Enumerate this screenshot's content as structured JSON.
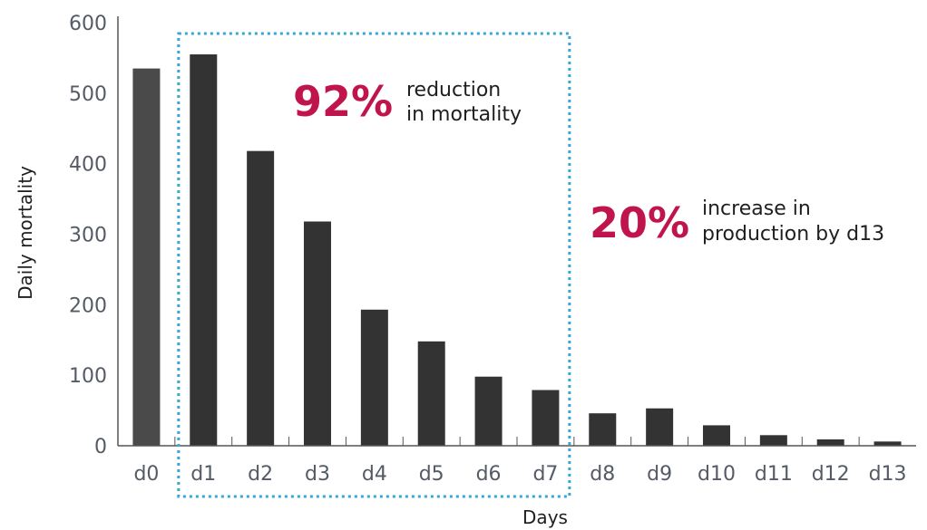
{
  "chart_data": {
    "type": "bar",
    "xlabel": "Days",
    "ylabel": "Daily mortality",
    "ylim": [
      0,
      600
    ],
    "yticks": [
      0,
      100,
      200,
      300,
      400,
      500,
      600
    ],
    "categories": [
      "d0",
      "d1",
      "d2",
      "d3",
      "d4",
      "d5",
      "d6",
      "d7",
      "d8",
      "d9",
      "d10",
      "d11",
      "d12",
      "d13"
    ],
    "values": [
      535,
      555,
      418,
      318,
      193,
      148,
      98,
      79,
      46,
      53,
      29,
      15,
      9,
      6
    ],
    "bar_colors": {
      "baseline": "#4a4a4a",
      "default": "#333333"
    },
    "grid": false,
    "annotations": [
      {
        "value": "92%",
        "text_line1": "reduction",
        "text_line2": "in mortality",
        "color": "#c0144c"
      },
      {
        "value": "20%",
        "text_line1": "increase in",
        "text_line2": "production by d13",
        "color": "#c0144c"
      }
    ],
    "highlight_box": {
      "from": "d1",
      "to": "d7",
      "color": "#3aa6d6",
      "style": "dotted"
    }
  }
}
